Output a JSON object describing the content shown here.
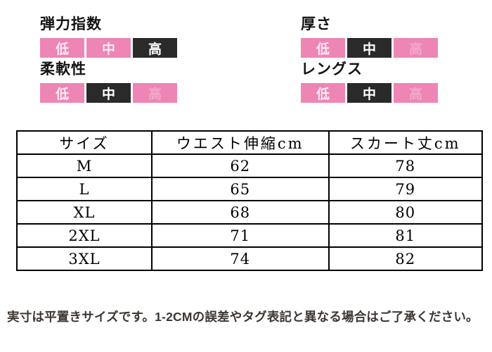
{
  "indicators": [
    {
      "title": "弾力指数",
      "levels": [
        {
          "label": "低",
          "style": "pink"
        },
        {
          "label": "中",
          "style": "pink"
        },
        {
          "label": "高",
          "style": "black"
        }
      ]
    },
    {
      "title": "柔軟性",
      "levels": [
        {
          "label": "低",
          "style": "pink"
        },
        {
          "label": "中",
          "style": "black"
        },
        {
          "label": "高",
          "style": "pink-dim"
        }
      ]
    },
    {
      "title": "厚さ",
      "levels": [
        {
          "label": "低",
          "style": "pink"
        },
        {
          "label": "中",
          "style": "black"
        },
        {
          "label": "高",
          "style": "pink-dim"
        }
      ]
    },
    {
      "title": "レングス",
      "levels": [
        {
          "label": "低",
          "style": "pink"
        },
        {
          "label": "中",
          "style": "black"
        },
        {
          "label": "高",
          "style": "pink-dim"
        }
      ]
    }
  ],
  "table": {
    "headers": [
      "サイズ",
      "ウエスト伸縮cm",
      "スカート丈cm"
    ],
    "rows": [
      [
        "M",
        "62",
        "78"
      ],
      [
        "L",
        "65",
        "79"
      ],
      [
        "XL",
        "68",
        "80"
      ],
      [
        "2XL",
        "71",
        "81"
      ],
      [
        "3XL",
        "74",
        "82"
      ]
    ]
  },
  "note": "実寸は平置きサイズです。1-2CMの誤差やタグ表記と異なる場合はご了承ください。",
  "colors": {
    "pink": "#ed86b4",
    "pink_text_light": "#fdeaf2",
    "pink_text_dim": "#f3a8c9",
    "black_box": "#2a2a2a",
    "black_box_text": "#ffffff",
    "note_text": "#3d3733",
    "table_border": "#000000"
  }
}
